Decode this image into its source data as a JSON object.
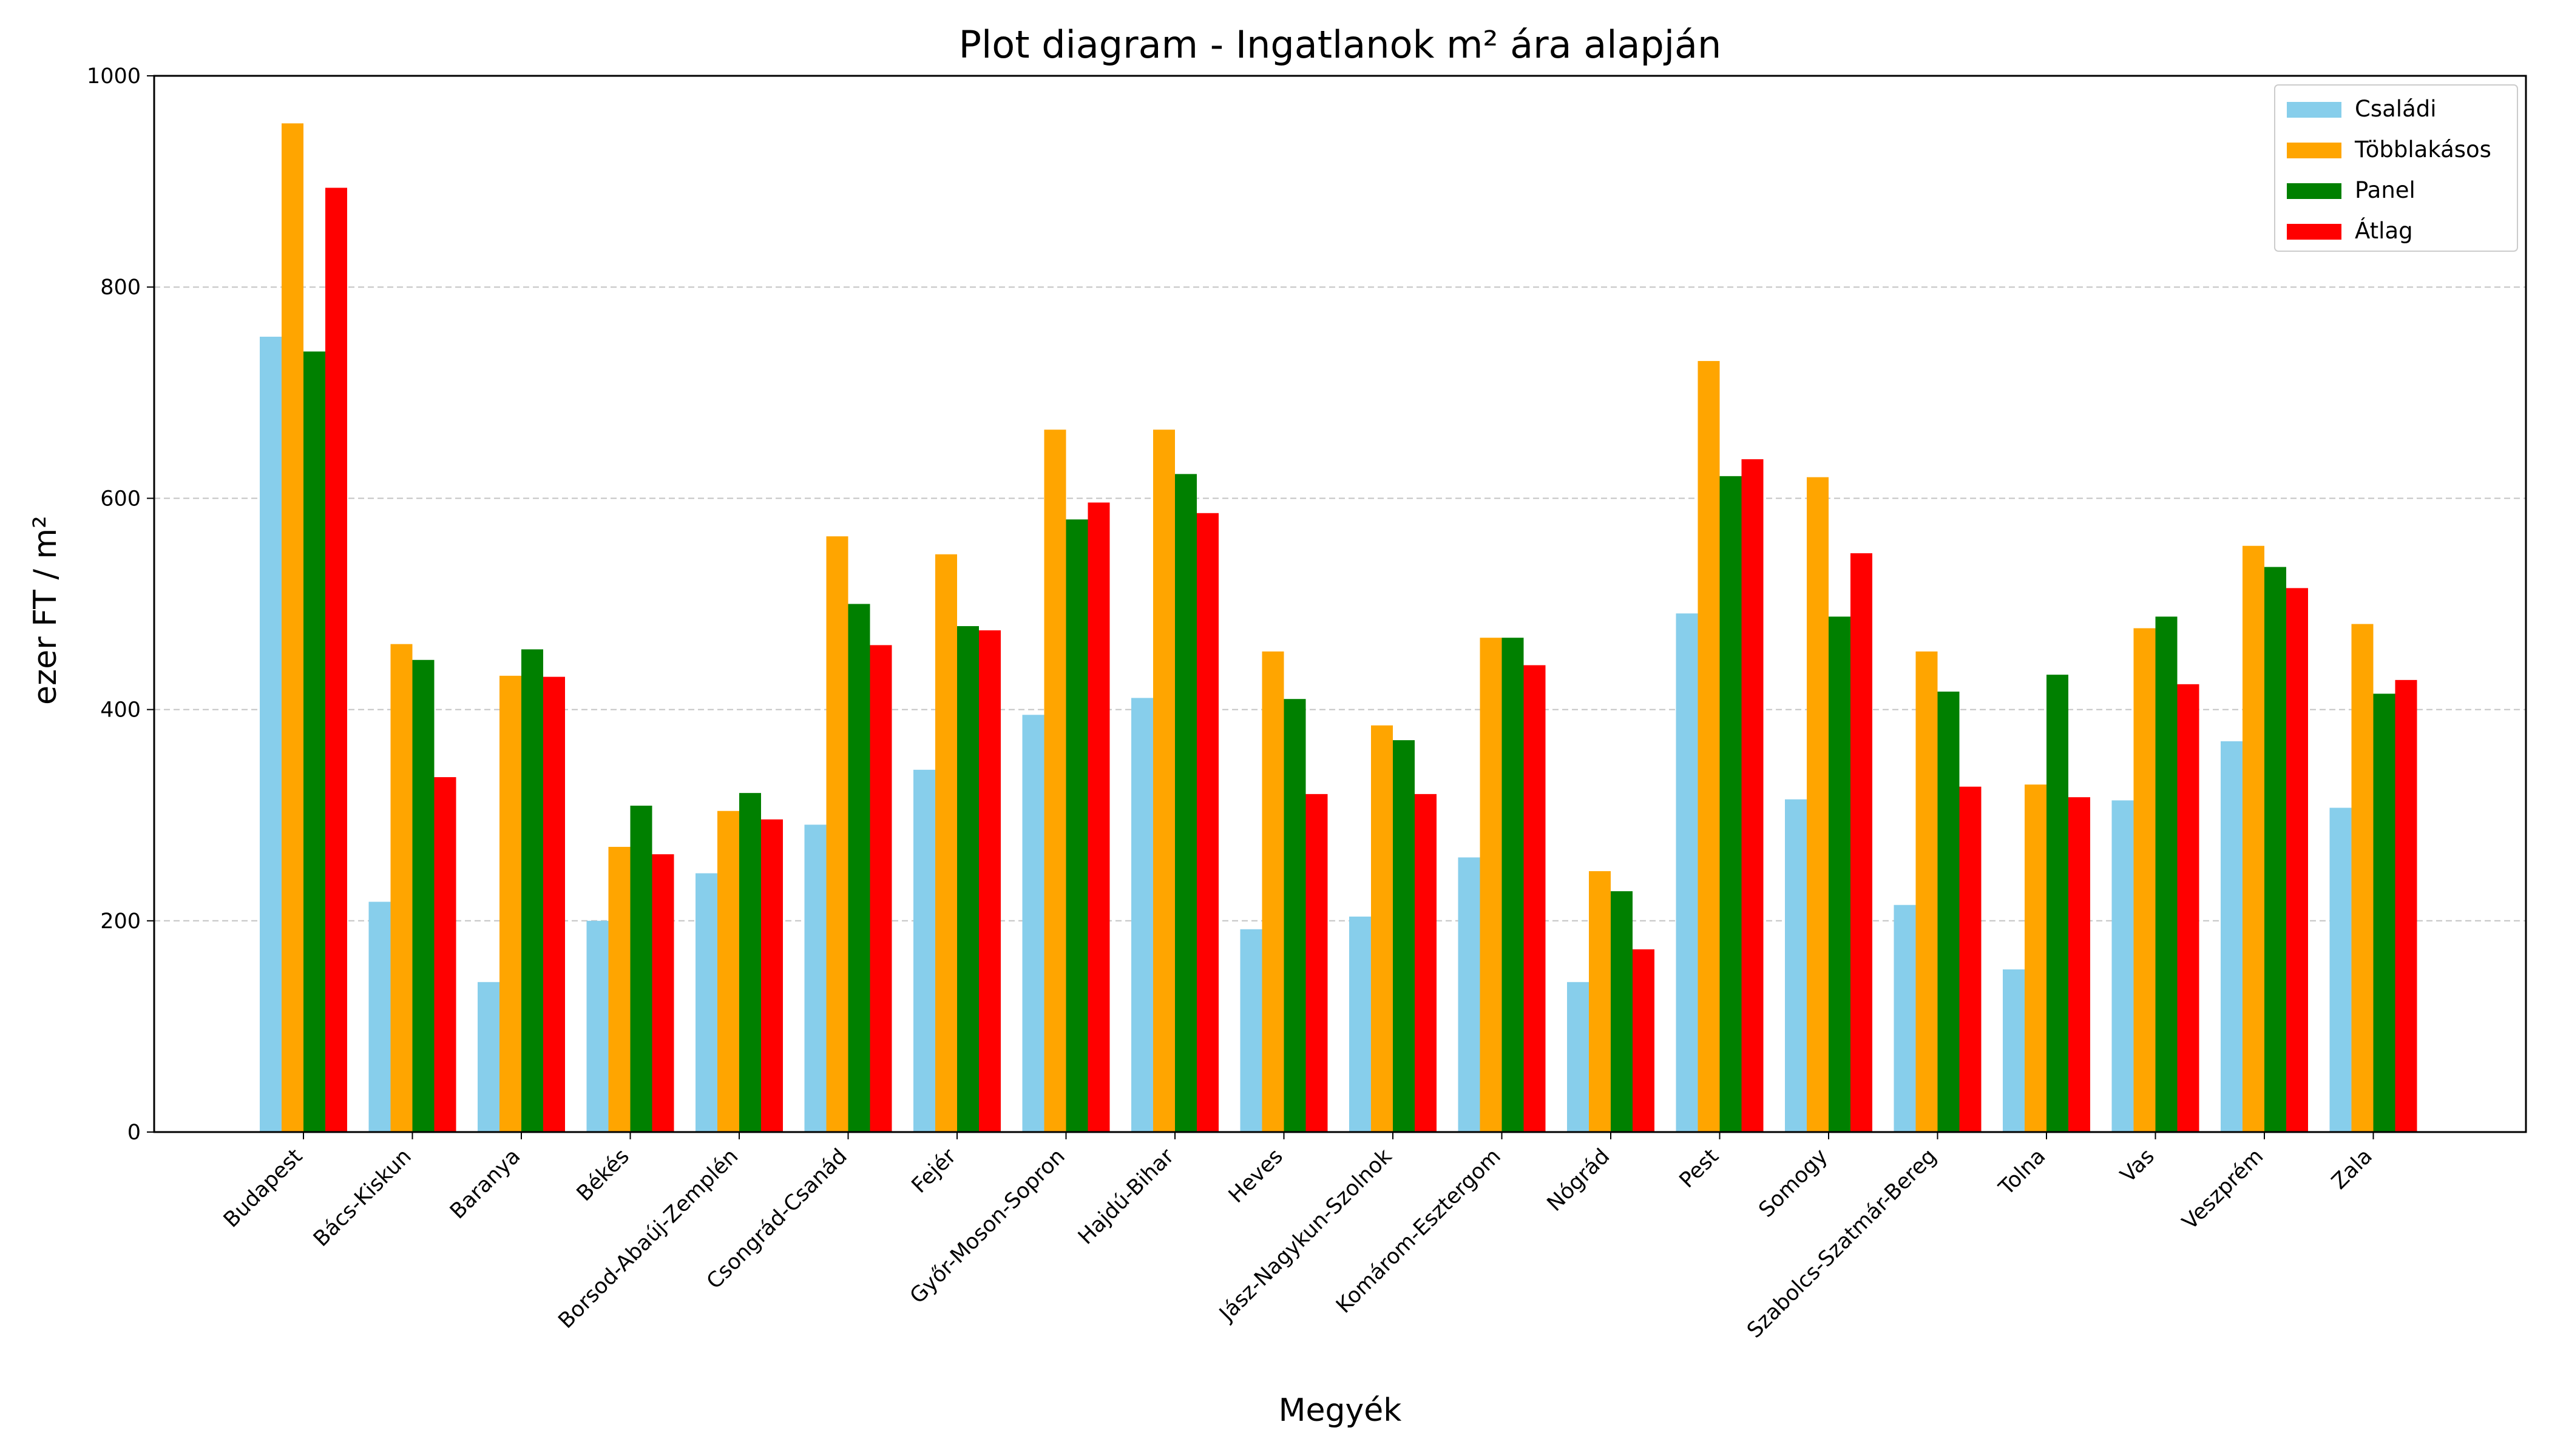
{
  "chart_data": {
    "type": "bar",
    "title": "Plot diagram - Ingatlanok m² ára alapján",
    "xlabel": "Megyék",
    "ylabel": "ezer FT / m²",
    "ylim": [
      0,
      1000
    ],
    "yticks": [
      0,
      200,
      400,
      600,
      800,
      1000
    ],
    "grid": "y-dashed",
    "legend_position": "top-right",
    "categories": [
      "Budapest",
      "Bács-Kiskun",
      "Baranya",
      "Békés",
      "Borsod-Abaúj-Zemplén",
      "Csongrád-Csanád",
      "Fejér",
      "Győr-Moson-Sopron",
      "Hajdú-Bihar",
      "Heves",
      "Jász-Nagykun-Szolnok",
      "Komárom-Esztergom",
      "Nógrád",
      "Pest",
      "Somogy",
      "Szabolcs-Szatmár-Bereg",
      "Tolna",
      "Vas",
      "Veszprém",
      "Zala"
    ],
    "series": [
      {
        "name": "Családi",
        "color": "#87ceeb",
        "values": [
          753,
          218,
          142,
          200,
          245,
          291,
          343,
          395,
          411,
          192,
          204,
          260,
          142,
          491,
          315,
          215,
          154,
          314,
          370,
          307
        ]
      },
      {
        "name": "Többlakásos",
        "color": "#ffa500",
        "values": [
          955,
          462,
          432,
          270,
          304,
          564,
          547,
          665,
          665,
          455,
          385,
          468,
          247,
          730,
          620,
          455,
          329,
          477,
          555,
          481
        ]
      },
      {
        "name": "Panel",
        "color": "#008000",
        "values": [
          739,
          447,
          457,
          309,
          321,
          500,
          479,
          580,
          623,
          410,
          371,
          468,
          228,
          621,
          488,
          417,
          433,
          488,
          535,
          415
        ]
      },
      {
        "name": "Átlag",
        "color": "#ff0000",
        "values": [
          894,
          336,
          431,
          263,
          296,
          461,
          475,
          596,
          586,
          320,
          320,
          442,
          173,
          637,
          548,
          327,
          317,
          424,
          515,
          428
        ]
      }
    ]
  }
}
